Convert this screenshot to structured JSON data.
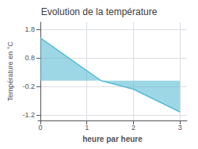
{
  "chart_data": {
    "type": "area",
    "title": "Evolution de la température",
    "xlabel": "heure par heure",
    "ylabel": "Température en °C",
    "x": [
      0,
      1.3,
      2.0,
      3.0
    ],
    "values": [
      1.5,
      0.0,
      -0.3,
      -1.1
    ],
    "color": "#5bbcd4",
    "xlim": [
      -0.05,
      3.15
    ],
    "ylim": [
      -1.4,
      2.05
    ],
    "xticks": [
      0,
      1,
      2,
      3
    ],
    "yticks": [
      -1.2,
      -0.2,
      0.8,
      1.8
    ],
    "grid": true
  }
}
